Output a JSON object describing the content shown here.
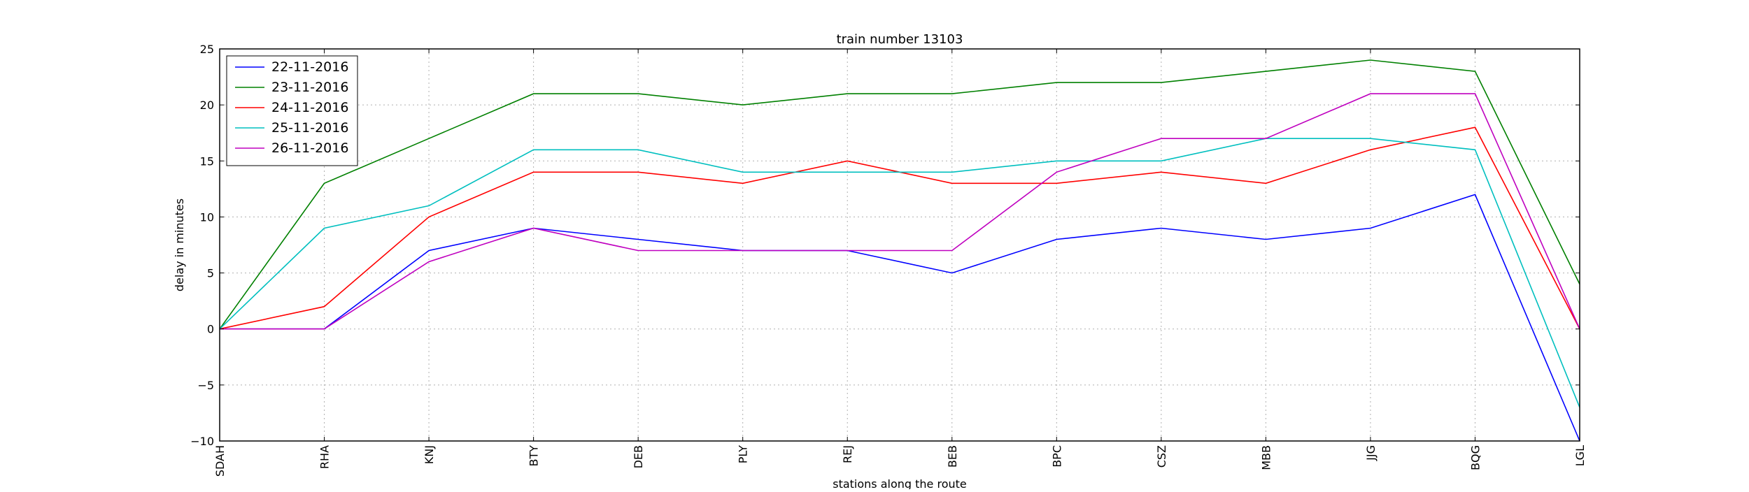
{
  "chart_data": {
    "type": "line",
    "title": "train number 13103",
    "xlabel": "stations along the route",
    "ylabel": "delay in minutes",
    "categories": [
      "SDAH",
      "RHA",
      "KNJ",
      "BTY",
      "DEB",
      "PLY",
      "REJ",
      "BEB",
      "BPC",
      "CSZ",
      "MBB",
      "JJG",
      "BQG",
      "LGL"
    ],
    "ylim": [
      -10,
      25
    ],
    "yticks": [
      -10,
      -5,
      0,
      5,
      10,
      15,
      20,
      25
    ],
    "grid": true,
    "legend_position": "top-left",
    "series": [
      {
        "name": "22-11-2016",
        "color": "#0000ff",
        "values": [
          0,
          0,
          7,
          9,
          8,
          7,
          7,
          5,
          8,
          9,
          8,
          9,
          12,
          -10
        ]
      },
      {
        "name": "23-11-2016",
        "color": "#008000",
        "values": [
          0,
          13,
          17,
          21,
          21,
          20,
          21,
          21,
          22,
          22,
          23,
          24,
          23,
          4
        ]
      },
      {
        "name": "24-11-2016",
        "color": "#ff0000",
        "values": [
          0,
          2,
          10,
          14,
          14,
          13,
          15,
          13,
          13,
          14,
          13,
          16,
          18,
          0
        ]
      },
      {
        "name": "25-11-2016",
        "color": "#00bfbf",
        "values": [
          0,
          9,
          11,
          16,
          16,
          14,
          14,
          14,
          15,
          15,
          17,
          17,
          16,
          -7
        ]
      },
      {
        "name": "26-11-2016",
        "color": "#bf00bf",
        "values": [
          0,
          0,
          6,
          9,
          7,
          7,
          7,
          7,
          14,
          17,
          17,
          21,
          21,
          0
        ]
      }
    ]
  }
}
